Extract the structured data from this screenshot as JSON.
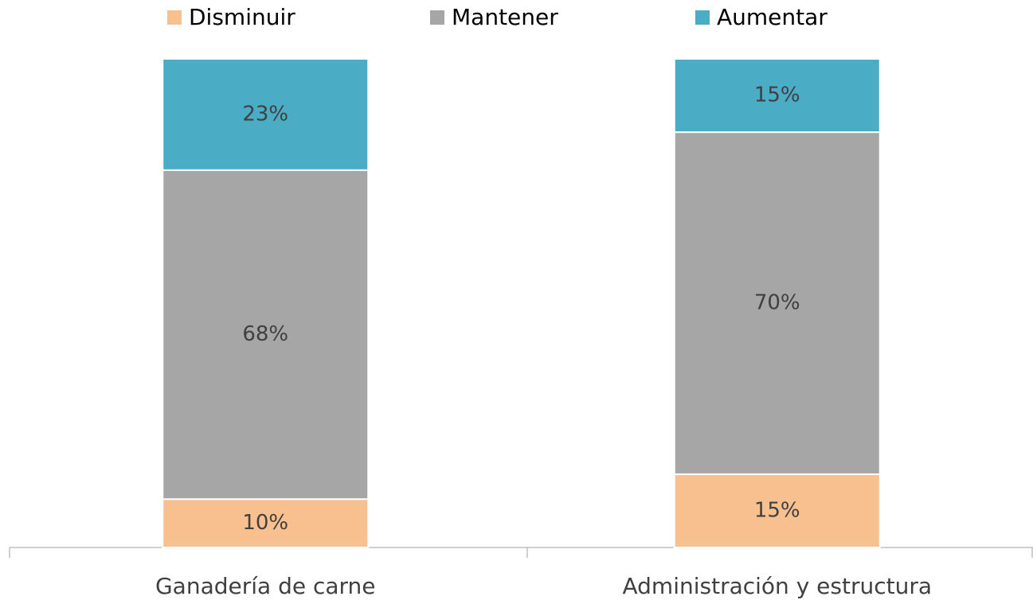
{
  "chart_data": {
    "type": "bar",
    "stack": "percent",
    "categories": [
      "Ganadería de carne",
      "Administración y estructura"
    ],
    "series": [
      {
        "name": "Disminuir",
        "color": "#F8BF8F",
        "values": [
          10,
          15
        ],
        "value_labels": [
          "10%",
          "15%"
        ]
      },
      {
        "name": "Mantener",
        "color": "#A6A6A6",
        "values": [
          68,
          70
        ],
        "value_labels": [
          "68%",
          "70%"
        ]
      },
      {
        "name": "Aumentar",
        "color": "#4BACC6",
        "values": [
          23,
          15
        ],
        "value_labels": [
          "23%",
          "15%"
        ]
      }
    ],
    "legend": "top"
  }
}
